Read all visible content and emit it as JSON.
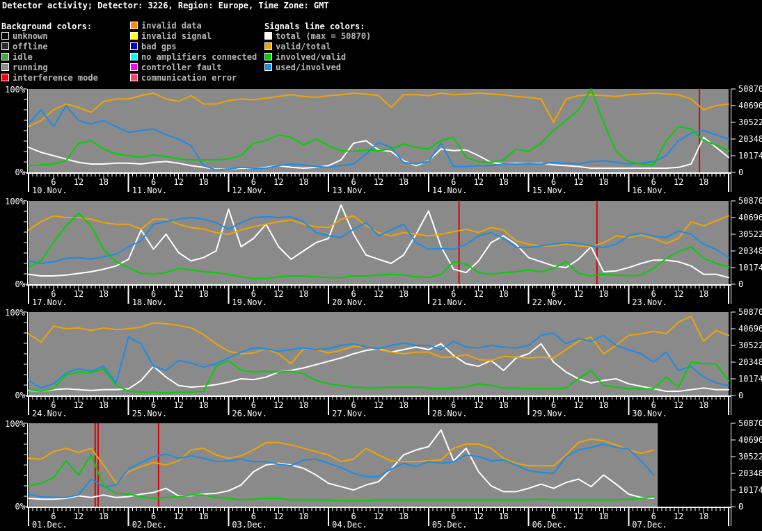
{
  "header": {
    "title": "Detector activity; Detector: 3226, Region: Europe, Time Zone: GMT"
  },
  "colors": {
    "page_background": "#000000",
    "plot_background": "#8a8a8a",
    "axis": "#ffffff",
    "interference_line": "#dd0000",
    "legend_text": "#b8b8b8",
    "legend_title_text": "#ffffff"
  },
  "legend": {
    "background_title": "Background colors:",
    "background_items": [
      {
        "label": "unknown",
        "color": "#000000"
      },
      {
        "label": "offline",
        "color": "#2b2b2b"
      },
      {
        "label": "idle",
        "color": "#44a444"
      },
      {
        "label": "running",
        "color": "#8a8a8a"
      },
      {
        "label": "interference mode",
        "color": "#ff0000"
      }
    ],
    "status_items": [
      {
        "label": "invalid data",
        "color": "#ff8c00"
      },
      {
        "label": "invalid signal",
        "color": "#ffff00"
      },
      {
        "label": "bad gps",
        "color": "#0000e0"
      },
      {
        "label": "no amplifiers connected",
        "color": "#00ffff"
      },
      {
        "label": "controller fault",
        "color": "#ff00ff"
      },
      {
        "label": "communication error",
        "color": "#ff4070"
      }
    ],
    "signals_title": "Signals line colors:",
    "signal_items": [
      {
        "label": "total (max = 50870)",
        "color": "#ffffff"
      },
      {
        "label": "valid/total",
        "color": "#efa500"
      },
      {
        "label": "involved/valid",
        "color": "#00d000"
      },
      {
        "label": "used/involved",
        "color": "#1b8ce8"
      }
    ]
  },
  "chart_axes": {
    "left_top_label": "100%",
    "left_bottom_label": "0%",
    "left_ylim": [
      0,
      100
    ],
    "right_labels": [
      "50870",
      "40696",
      "30522",
      "20348",
      "10174",
      "0"
    ],
    "right_ylim": [
      0,
      50870
    ],
    "hour_labels": [
      6,
      12,
      18
    ],
    "hours_per_strip": 168,
    "grid": false
  },
  "chart_data": [
    {
      "type": "line",
      "days": [
        "10.Nov.",
        "11.Nov.",
        "12.Nov.",
        "13.Nov.",
        "14.Nov.",
        "15.Nov.",
        "16.Nov."
      ],
      "sample_step_hours": 3,
      "data_end_hour": 168,
      "interference_hours": [
        161
      ],
      "series": [
        {
          "name": "total",
          "color": "#ffffff",
          "values": [
            30,
            24,
            20,
            16,
            12,
            10,
            10,
            11,
            11,
            10,
            12,
            13,
            11,
            8,
            6,
            4,
            4,
            5,
            5,
            6,
            8,
            6,
            5,
            6,
            8,
            15,
            35,
            38,
            27,
            25,
            14,
            8,
            14,
            28,
            26,
            27,
            20,
            12,
            10,
            11,
            10,
            11,
            9,
            8,
            7,
            5,
            5,
            5,
            5,
            5,
            5,
            5,
            6,
            10,
            42,
            30,
            18
          ]
        },
        {
          "name": "valid/total",
          "color": "#efa500",
          "values": [
            55,
            62,
            75,
            82,
            78,
            72,
            85,
            88,
            88,
            92,
            95,
            88,
            85,
            92,
            82,
            82,
            86,
            88,
            87,
            89,
            91,
            93,
            91,
            90,
            92,
            93,
            95,
            94,
            92,
            78,
            93,
            93,
            92,
            95,
            93,
            94,
            95,
            94,
            93,
            91,
            90,
            88,
            60,
            88,
            92,
            93,
            92,
            91,
            93,
            94,
            95,
            94,
            93,
            88,
            75,
            80,
            82
          ]
        },
        {
          "name": "involved/valid",
          "color": "#00d000",
          "values": [
            8,
            9,
            10,
            14,
            35,
            38,
            28,
            22,
            20,
            18,
            21,
            19,
            16,
            15,
            15,
            15,
            16,
            20,
            35,
            38,
            45,
            42,
            33,
            40,
            32,
            26,
            25,
            27,
            26,
            28,
            34,
            30,
            28,
            38,
            42,
            18,
            13,
            12,
            15,
            28,
            25,
            35,
            50,
            62,
            75,
            100,
            60,
            25,
            13,
            10,
            9,
            38,
            55,
            52,
            38,
            33,
            26
          ]
        },
        {
          "name": "used/involved",
          "color": "#1b8ce8",
          "values": [
            58,
            75,
            55,
            80,
            62,
            58,
            62,
            55,
            48,
            50,
            52,
            45,
            40,
            32,
            8,
            3,
            4,
            6,
            5,
            5,
            8,
            10,
            9,
            7,
            6,
            8,
            10,
            22,
            36,
            30,
            12,
            10,
            13,
            35,
            7,
            7,
            8,
            8,
            10,
            10,
            10,
            10,
            12,
            11,
            10,
            13,
            14,
            12,
            10,
            11,
            13,
            20,
            38,
            47,
            50,
            45,
            40
          ]
        }
      ]
    },
    {
      "type": "line",
      "days": [
        "17.Nov.",
        "18.Nov.",
        "19.Nov.",
        "20.Nov.",
        "21.Nov.",
        "22.Nov.",
        "23.Nov."
      ],
      "sample_step_hours": 3,
      "data_end_hour": 168,
      "interference_hours": [
        103.3,
        136.4
      ],
      "series": [
        {
          "name": "total",
          "color": "#ffffff",
          "values": [
            12,
            10,
            10,
            11,
            13,
            15,
            18,
            22,
            30,
            65,
            42,
            60,
            38,
            28,
            32,
            40,
            90,
            45,
            55,
            72,
            45,
            30,
            40,
            50,
            55,
            95,
            60,
            35,
            30,
            25,
            35,
            60,
            88,
            45,
            18,
            14,
            28,
            50,
            58,
            48,
            32,
            27,
            22,
            20,
            30,
            45,
            15,
            16,
            20,
            25,
            29,
            29,
            27,
            22,
            12,
            12,
            8
          ]
        },
        {
          "name": "valid/total",
          "color": "#efa500",
          "values": [
            65,
            75,
            82,
            80,
            80,
            78,
            74,
            72,
            72,
            66,
            78,
            78,
            72,
            68,
            66,
            62,
            60,
            65,
            69,
            72,
            75,
            77,
            72,
            69,
            68,
            78,
            82,
            70,
            62,
            58,
            62,
            60,
            58,
            60,
            63,
            66,
            62,
            68,
            65,
            52,
            48,
            46,
            46,
            48,
            46,
            45,
            50,
            58,
            56,
            59,
            55,
            49,
            55,
            75,
            70,
            76,
            82
          ]
        },
        {
          "name": "involved/valid",
          "color": "#00d000",
          "values": [
            20,
            28,
            50,
            70,
            85,
            70,
            42,
            27,
            20,
            13,
            12,
            14,
            19,
            17,
            15,
            14,
            12,
            9,
            7,
            7,
            9,
            10,
            10,
            9,
            8,
            8,
            10,
            10,
            11,
            12,
            11,
            9,
            8,
            12,
            27,
            24,
            14,
            12,
            14,
            15,
            17,
            15,
            19,
            27,
            13,
            10,
            12,
            11,
            10,
            11,
            19,
            31,
            39,
            45,
            31,
            25,
            21
          ]
        },
        {
          "name": "used/involved",
          "color": "#1b8ce8",
          "values": [
            28,
            25,
            27,
            31,
            32,
            30,
            33,
            36,
            45,
            52,
            72,
            75,
            78,
            80,
            78,
            74,
            66,
            74,
            80,
            81,
            80,
            81,
            75,
            62,
            58,
            56,
            66,
            74,
            58,
            65,
            72,
            50,
            42,
            43,
            42,
            48,
            58,
            62,
            55,
            44,
            44,
            46,
            48,
            50,
            49,
            46,
            44,
            48,
            58,
            61,
            58,
            56,
            64,
            60,
            48,
            42,
            32
          ]
        }
      ]
    },
    {
      "type": "line",
      "days": [
        "24.Nov.",
        "25.Nov.",
        "26.Nov.",
        "27.Nov.",
        "28.Nov.",
        "29.Nov.",
        "30.Nov."
      ],
      "sample_step_hours": 3,
      "data_end_hour": 168,
      "interference_hours": [],
      "series": [
        {
          "name": "total",
          "color": "#ffffff",
          "values": [
            6,
            5,
            7,
            8,
            7,
            6,
            7,
            7,
            8,
            18,
            35,
            22,
            12,
            10,
            11,
            13,
            16,
            20,
            19,
            22,
            28,
            30,
            33,
            37,
            41,
            45,
            50,
            54,
            56,
            52,
            55,
            58,
            55,
            62,
            48,
            38,
            35,
            42,
            30,
            45,
            50,
            62,
            40,
            28,
            20,
            15,
            18,
            20,
            14,
            11,
            8,
            5,
            5,
            7,
            9,
            7,
            7
          ]
        },
        {
          "name": "valid/total",
          "color": "#efa500",
          "values": [
            74,
            64,
            83,
            80,
            81,
            78,
            81,
            79,
            80,
            82,
            87,
            86,
            84,
            81,
            73,
            62,
            53,
            50,
            51,
            56,
            50,
            38,
            56,
            55,
            51,
            54,
            59,
            58,
            55,
            52,
            50,
            52,
            52,
            46,
            46,
            49,
            43,
            42,
            47,
            46,
            45,
            46,
            45,
            55,
            65,
            70,
            50,
            60,
            72,
            74,
            77,
            74,
            88,
            95,
            65,
            78,
            72
          ]
        },
        {
          "name": "involved/valid",
          "color": "#00d000",
          "values": [
            7,
            5,
            8,
            25,
            28,
            27,
            32,
            12,
            5,
            4,
            4,
            3,
            4,
            4,
            5,
            35,
            42,
            30,
            28,
            29,
            28,
            29,
            26,
            18,
            14,
            12,
            10,
            9,
            9,
            10,
            10,
            10,
            9,
            8,
            9,
            10,
            14,
            12,
            9,
            9,
            8,
            8,
            8,
            9,
            20,
            30,
            12,
            10,
            8,
            8,
            8,
            22,
            10,
            40,
            38,
            38,
            18
          ]
        },
        {
          "name": "used/involved",
          "color": "#1b8ce8",
          "values": [
            18,
            9,
            14,
            27,
            32,
            29,
            35,
            15,
            70,
            62,
            35,
            30,
            42,
            39,
            34,
            38,
            45,
            52,
            57,
            56,
            53,
            55,
            57,
            55,
            56,
            60,
            62,
            58,
            56,
            60,
            63,
            60,
            60,
            55,
            65,
            58,
            57,
            60,
            58,
            57,
            60,
            72,
            75,
            62,
            68,
            65,
            72,
            60,
            55,
            50,
            40,
            52,
            30,
            35,
            22,
            15,
            12
          ]
        }
      ]
    },
    {
      "type": "line",
      "days": [
        "01.Dec.",
        "02.Dec.",
        "03.Dec.",
        "04.Dec.",
        "05.Dec.",
        "06.Dec.",
        "07.Dec."
      ],
      "sample_step_hours": 3,
      "data_end_hour": 151,
      "interference_hours": [
        16,
        16.7,
        31.2
      ],
      "series": [
        {
          "name": "total",
          "color": "#ffffff",
          "values": [
            10,
            9,
            9,
            10,
            13,
            11,
            14,
            11,
            12,
            15,
            17,
            22,
            13,
            13,
            15,
            16,
            19,
            26,
            42,
            50,
            52,
            50,
            46,
            38,
            28,
            24,
            20,
            26,
            30,
            45,
            62,
            68,
            72,
            92,
            55,
            70,
            42,
            25,
            18,
            18,
            22,
            27,
            22,
            29,
            33,
            24,
            38,
            27,
            15,
            11,
            10
          ]
        },
        {
          "name": "valid/total",
          "color": "#efa500",
          "values": [
            58,
            57,
            66,
            70,
            65,
            70,
            50,
            28,
            42,
            48,
            53,
            50,
            55,
            68,
            70,
            62,
            58,
            61,
            68,
            77,
            77,
            74,
            70,
            66,
            62,
            54,
            57,
            70,
            62,
            55,
            54,
            54,
            55,
            56,
            70,
            75,
            75,
            70,
            58,
            52,
            49,
            49,
            49,
            62,
            77,
            81,
            79,
            74,
            68,
            64,
            68
          ]
        },
        {
          "name": "involved/valid",
          "color": "#00d000",
          "values": [
            25,
            28,
            35,
            55,
            38,
            62,
            25,
            16,
            15,
            12,
            10,
            11,
            12,
            14,
            14,
            11,
            10,
            8,
            9,
            10,
            10,
            8,
            8,
            8,
            8,
            7,
            7,
            7,
            8,
            8,
            8,
            8,
            8,
            8,
            8,
            8,
            8,
            8,
            8,
            8,
            8,
            9,
            8,
            8,
            8,
            8,
            8,
            8,
            9,
            10,
            12
          ]
        },
        {
          "name": "used/involved",
          "color": "#1b8ce8",
          "values": [
            15,
            12,
            11,
            11,
            14,
            33,
            24,
            26,
            45,
            53,
            60,
            63,
            58,
            61,
            58,
            54,
            55,
            57,
            54,
            54,
            51,
            49,
            56,
            57,
            52,
            47,
            40,
            36,
            36,
            45,
            52,
            48,
            54,
            52,
            54,
            62,
            60,
            55,
            56,
            50,
            43,
            41,
            40,
            60,
            68,
            71,
            75,
            71,
            69,
            55,
            38
          ]
        }
      ]
    }
  ]
}
